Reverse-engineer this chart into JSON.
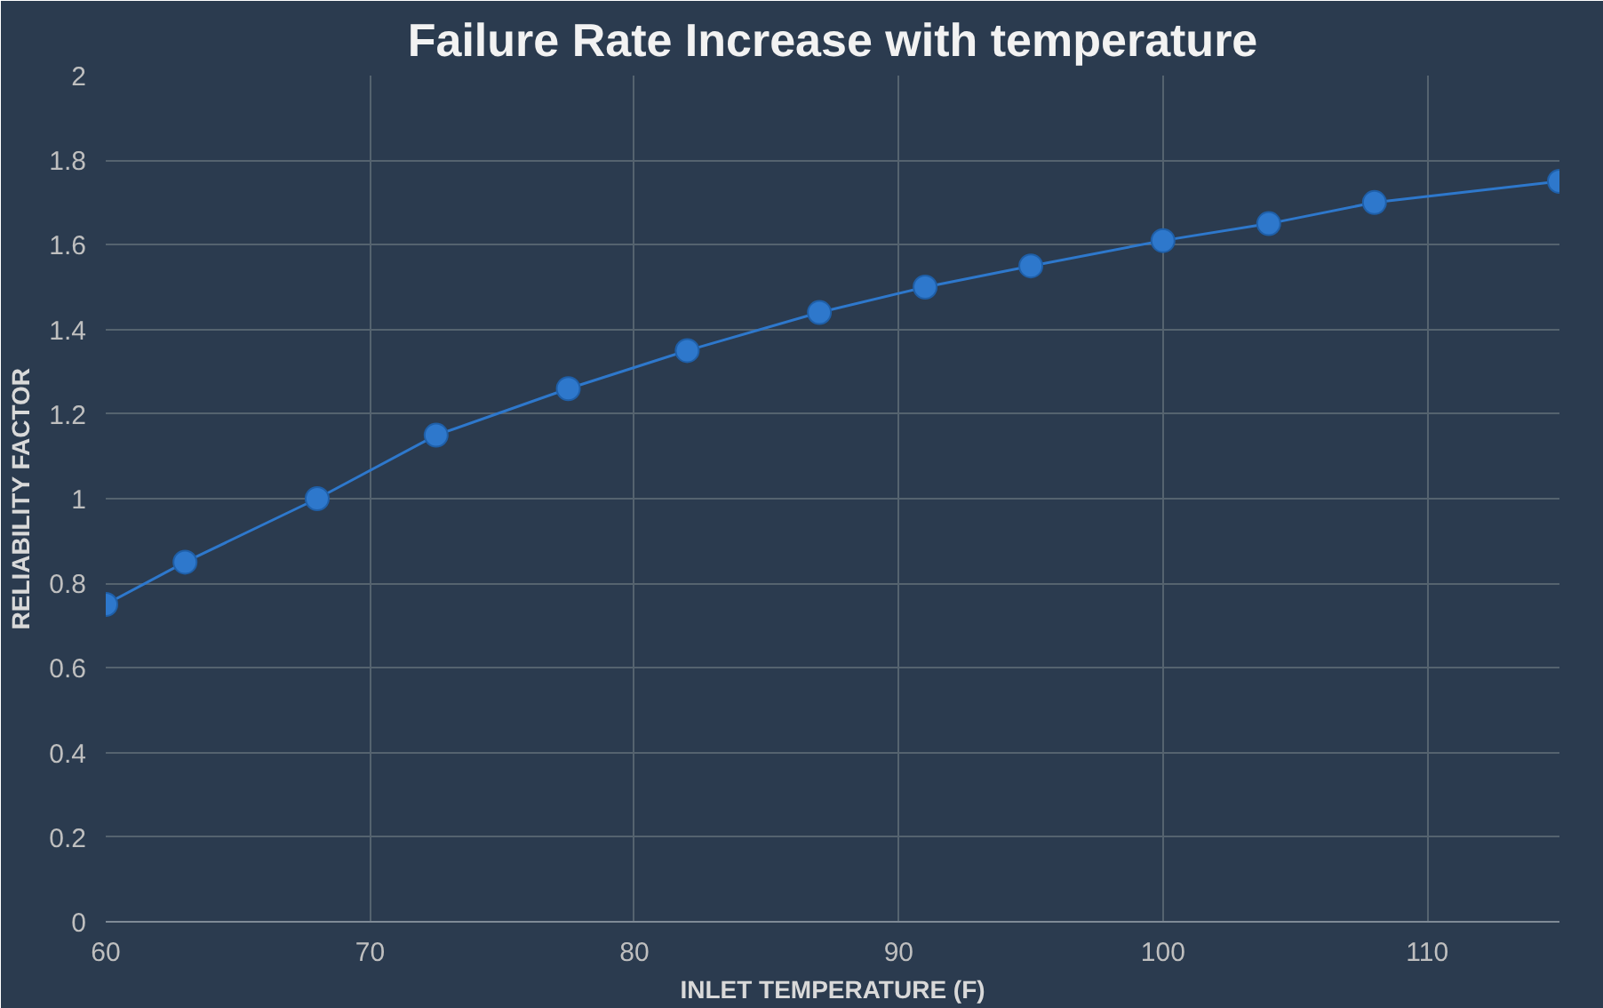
{
  "chart_data": {
    "type": "line",
    "title": "Failure Rate Increase with temperature",
    "xlabel": "INLET TEMPERATURE (F)",
    "ylabel": "RELIABILITY FACTOR",
    "x": [
      60,
      63,
      68,
      72.5,
      77.5,
      82,
      87,
      91,
      95,
      100,
      104,
      108,
      115
    ],
    "series": [
      {
        "color": "#2e78cc",
        "values": [
          0.75,
          0.85,
          1.0,
          1.15,
          1.26,
          1.35,
          1.44,
          1.5,
          1.55,
          1.61,
          1.65,
          1.7,
          1.75
        ]
      }
    ],
    "xlim": [
      60,
      115
    ],
    "xticks": [
      60,
      70,
      80,
      90,
      100,
      110
    ],
    "ylim": [
      0,
      2
    ],
    "yticks": [
      0,
      0.2,
      0.4,
      0.6,
      0.8,
      1,
      1.2,
      1.4,
      1.6,
      1.8,
      2
    ],
    "grid": true,
    "marker": "circle",
    "line_style": "solid"
  }
}
